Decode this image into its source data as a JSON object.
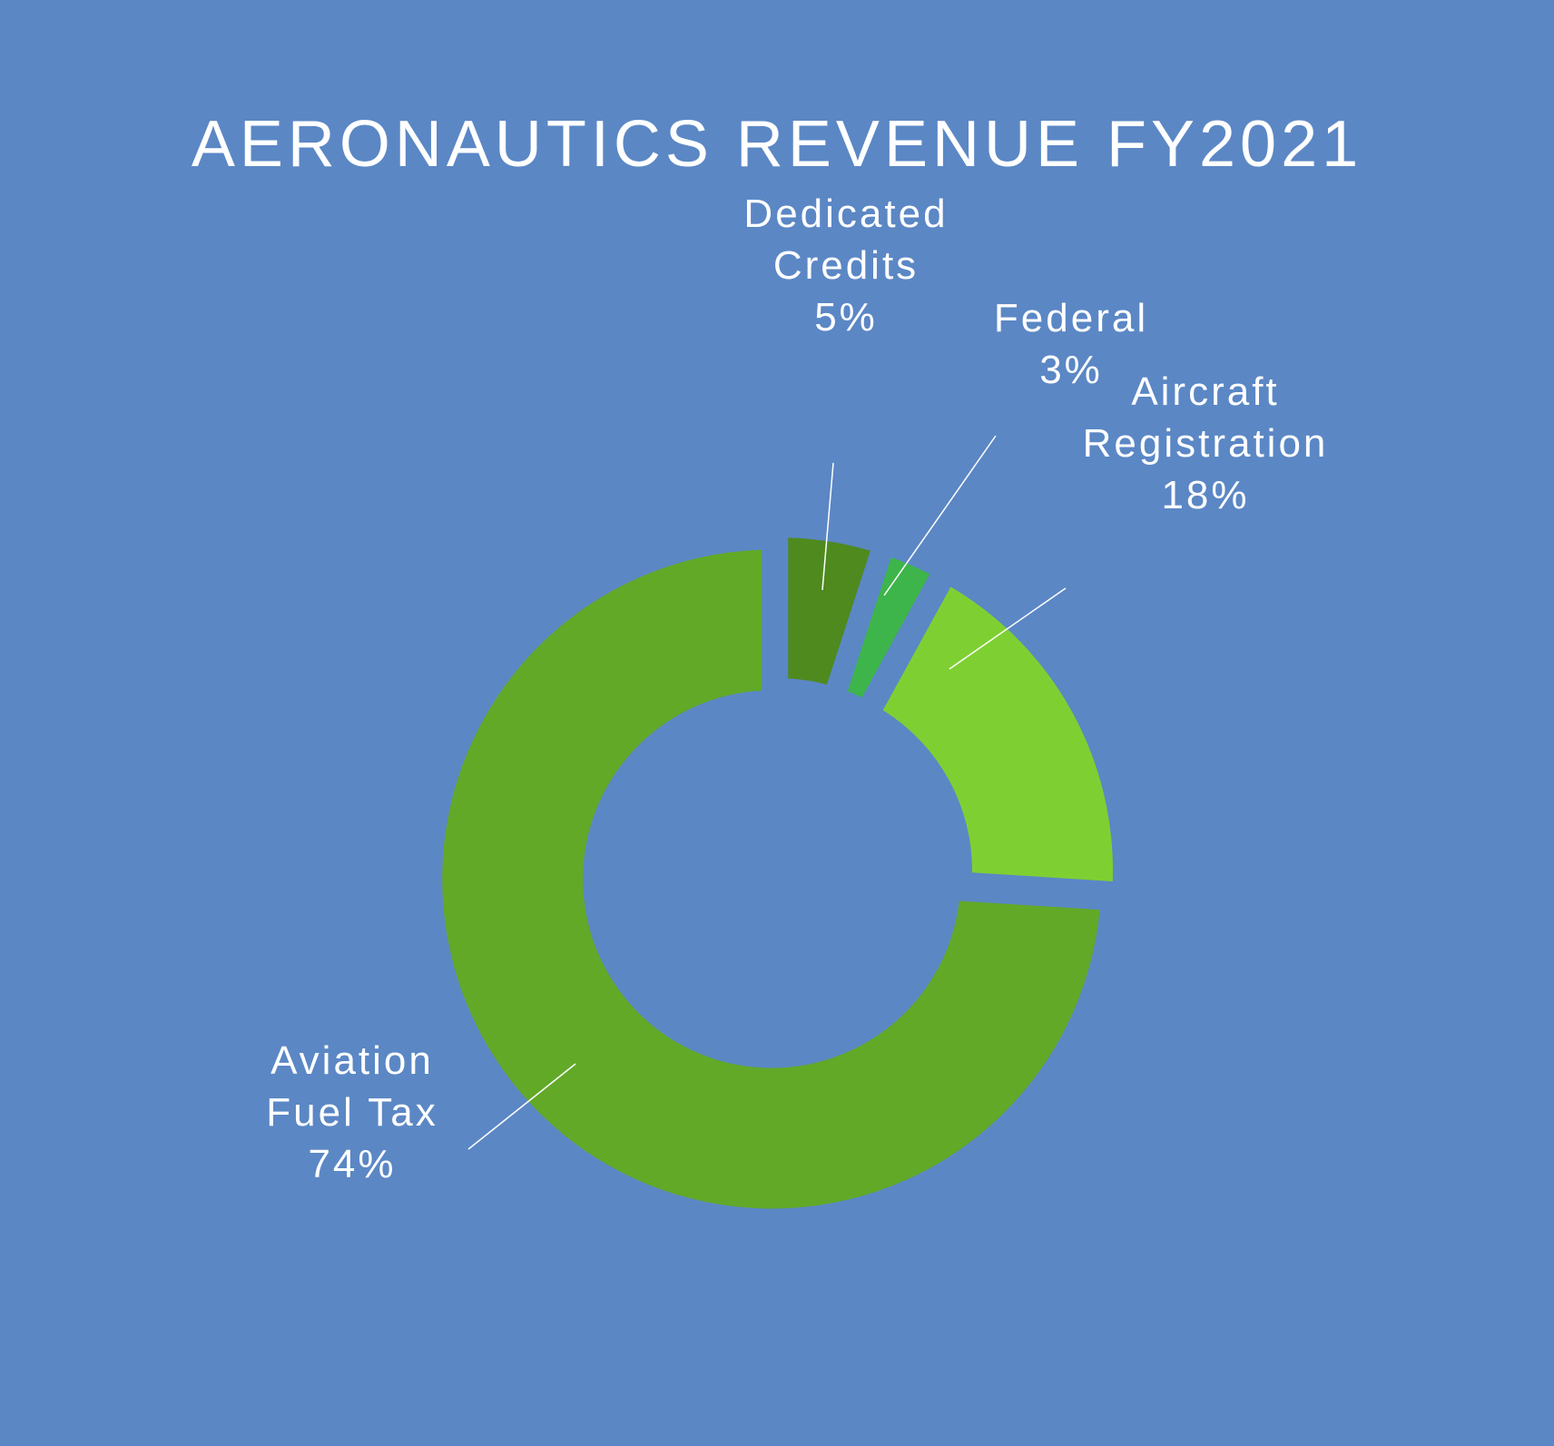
{
  "chart_data": {
    "type": "pie",
    "variant": "donut",
    "title": "AERONAUTICS REVENUE FY2021",
    "slices": [
      {
        "label_lines": [
          "Dedicated",
          "Credits"
        ],
        "value": 5,
        "value_label": "5%",
        "color": "#4e8a1e"
      },
      {
        "label_lines": [
          "Federal"
        ],
        "value": 3,
        "value_label": "3%",
        "color": "#3db54a"
      },
      {
        "label_lines": [
          "Aircraft",
          "Registration"
        ],
        "value": 18,
        "value_label": "18%",
        "color": "#7ed032"
      },
      {
        "label_lines": [
          "Aviation",
          "Fuel Tax"
        ],
        "value": 74,
        "value_label": "74%",
        "color": "#62a928"
      }
    ],
    "legend": "none",
    "background_color": "#5b87c5"
  }
}
